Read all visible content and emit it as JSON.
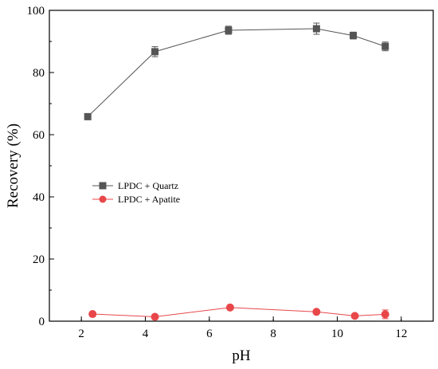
{
  "chart_data": {
    "type": "line",
    "xlabel": "pH",
    "ylabel": "Recovery (%)",
    "xlim": [
      1,
      13
    ],
    "ylim": [
      0,
      100
    ],
    "x_ticks": [
      2,
      4,
      6,
      8,
      10,
      12
    ],
    "y_ticks": [
      0,
      20,
      40,
      60,
      80,
      100
    ],
    "grid": false,
    "legend_position": "middle-left",
    "series": [
      {
        "name": "LPDC + Quartz",
        "color": "#555555",
        "marker": "square",
        "x": [
          2.2,
          4.3,
          6.6,
          9.35,
          10.5,
          11.5
        ],
        "y": [
          65.8,
          86.7,
          93.6,
          94.1,
          91.9,
          88.4
        ],
        "error": [
          0.0,
          1.6,
          1.3,
          1.8,
          1.1,
          1.4
        ]
      },
      {
        "name": "LPDC + Apatite",
        "color": "#e8474a",
        "marker": "circle",
        "x": [
          2.35,
          4.3,
          6.65,
          9.35,
          10.55,
          11.5
        ],
        "y": [
          2.3,
          1.4,
          4.4,
          3.0,
          1.7,
          2.2
        ],
        "error": [
          0.7,
          0.3,
          0.6,
          0.3,
          0.4,
          1.4
        ]
      }
    ]
  }
}
